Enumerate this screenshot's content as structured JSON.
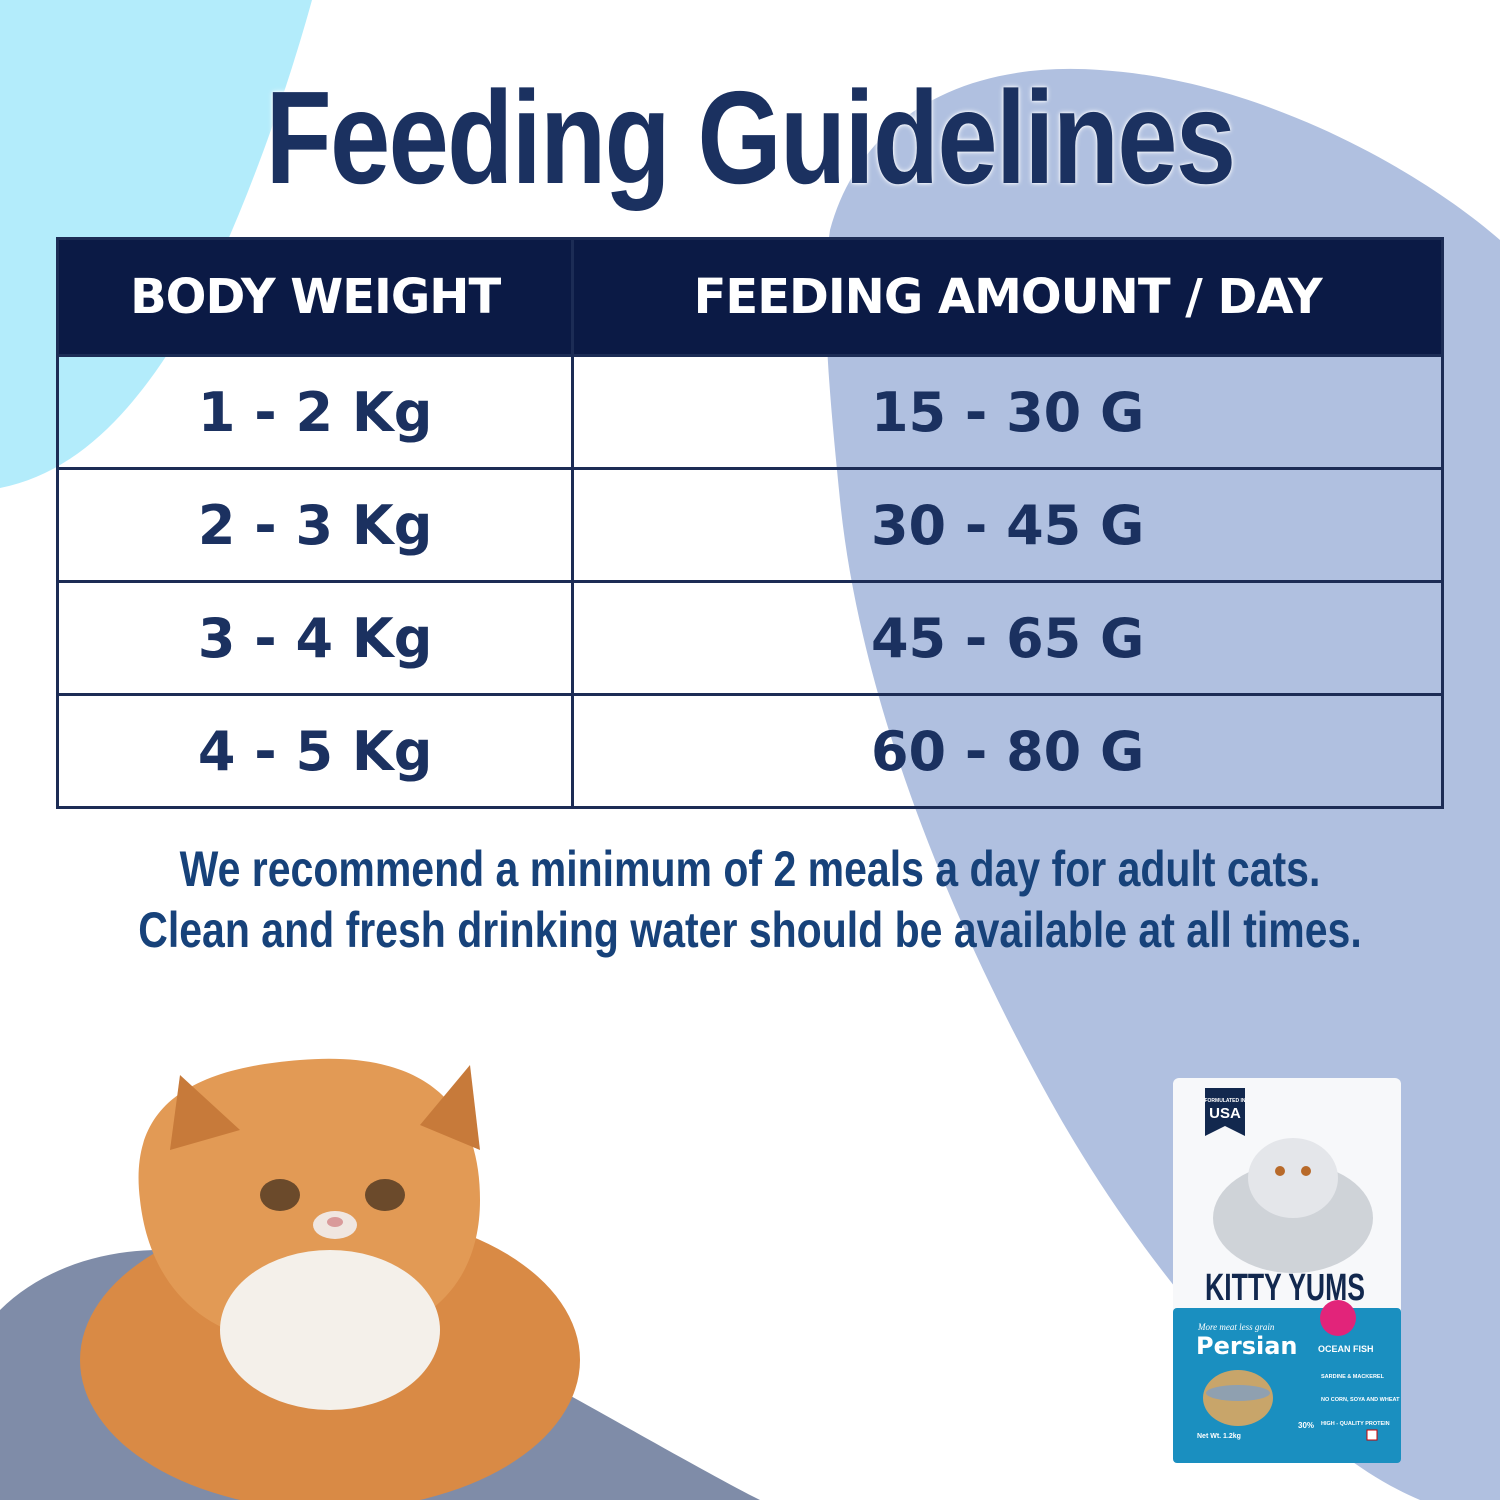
{
  "title": "Feeding Guidelines",
  "table": {
    "headers": [
      "BODY WEIGHT",
      "FEEDING AMOUNT / DAY"
    ],
    "rows": [
      [
        "1 - 2 Kg",
        "15 - 30 G"
      ],
      [
        "2 - 3 Kg",
        "30 - 45 G"
      ],
      [
        "3 - 4 Kg",
        "45 - 65 G"
      ],
      [
        "4 - 5 Kg",
        "60 - 80 G"
      ]
    ]
  },
  "notes": [
    "We recommend a minimum of 2 meals a day for adult cats.",
    "Clean and fresh drinking water should be available at all times."
  ],
  "product": {
    "badge_small": "FORMULATED IN",
    "badge_big": "USA",
    "brand": "KITTY YUMS",
    "tagline": "More meat less grain",
    "variant": "Persian",
    "flavor": "OCEAN FISH",
    "features": [
      "SARDINE & MACKEREL",
      "NO CORN, SOYA AND WHEAT",
      "HIGH - QUALITY PROTEIN"
    ],
    "protein_pct": "30%",
    "net_weight": "Net Wt. 1.2kg"
  },
  "colors": {
    "navy": "#0b1a45",
    "title": "#1b3160",
    "cyan_blob": "#b3ecfb",
    "lavender_blob": "#b0c0e0",
    "grey_blob": "#7f8ca8",
    "bag_blue": "#1a8fc0"
  }
}
